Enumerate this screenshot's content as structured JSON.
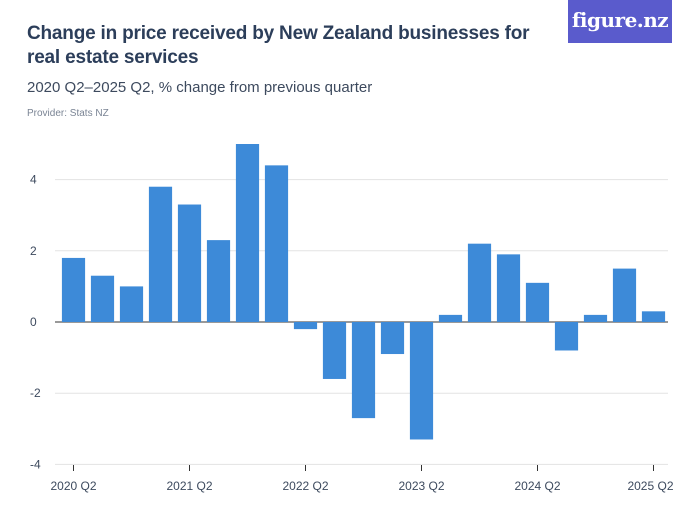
{
  "header": {
    "title": "Change in price received by New Zealand businesses for real estate services",
    "subtitle": "2020 Q2–2025 Q2, % change from previous quarter",
    "provider": "Provider: Stats NZ",
    "logo": "figure.nz"
  },
  "colors": {
    "bar": "#3d8ad8",
    "grid": "#e3e3e3",
    "axis": "#333333",
    "logo_bg": "#5a5bcc"
  },
  "chart_data": {
    "type": "bar",
    "title": "Change in price received by New Zealand businesses for real estate services",
    "subtitle": "2020 Q2–2025 Q2, % change from previous quarter",
    "xlabel": "",
    "ylabel": "",
    "ylim": [
      -4,
      5
    ],
    "yticks": [
      -4,
      -2,
      0,
      2,
      4
    ],
    "grid": true,
    "x_tick_labels": [
      "2020 Q2",
      "2021 Q2",
      "2022 Q2",
      "2023 Q2",
      "2024 Q2",
      "2025 Q2"
    ],
    "categories": [
      "2020 Q2",
      "2020 Q3",
      "2020 Q4",
      "2021 Q1",
      "2021 Q2",
      "2021 Q3",
      "2021 Q4",
      "2022 Q1",
      "2022 Q2",
      "2022 Q3",
      "2022 Q4",
      "2023 Q1",
      "2023 Q2",
      "2023 Q3",
      "2023 Q4",
      "2024 Q1",
      "2024 Q2",
      "2024 Q3",
      "2024 Q4",
      "2025 Q1",
      "2025 Q2"
    ],
    "values": [
      1.8,
      1.3,
      1.0,
      3.8,
      3.3,
      2.3,
      5.0,
      4.4,
      -0.2,
      -1.6,
      -2.7,
      -0.9,
      -3.3,
      0.2,
      2.2,
      1.9,
      1.1,
      -0.8,
      0.2,
      1.5,
      0.3
    ]
  }
}
